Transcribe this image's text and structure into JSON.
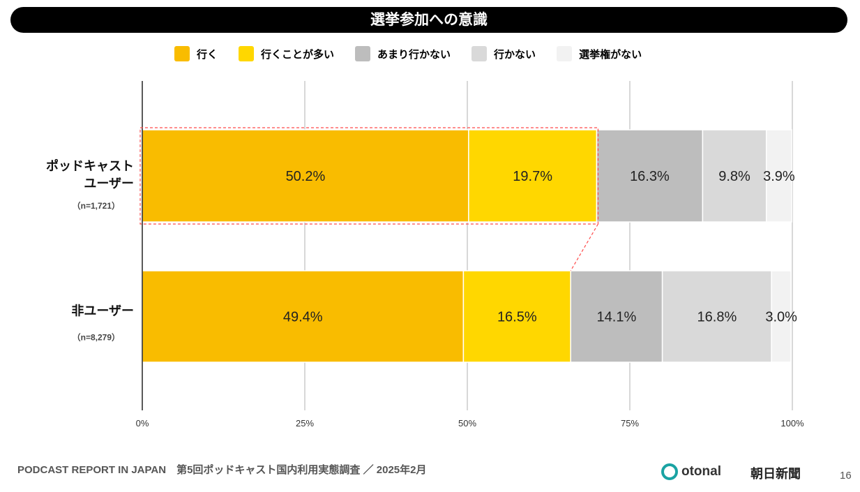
{
  "title": "選挙参加への意識",
  "chart_data": {
    "type": "bar",
    "stacked": true,
    "orientation": "horizontal",
    "title": "選挙参加への意識",
    "legend": [
      "行く",
      "行くことが多い",
      "あまり行かない",
      "行かない",
      "選挙権がない"
    ],
    "colors": [
      "#F9BC00",
      "#FFD700",
      "#BDBDBD",
      "#D9D9D9",
      "#F2F2F2"
    ],
    "categories": [
      {
        "label1": "ポッドキャスト",
        "label2": "ユーザー",
        "n": "（n=1,721）"
      },
      {
        "label1": "",
        "label2": "非ユーザー",
        "n": "（n=8,279）"
      }
    ],
    "series_values": [
      [
        50.2,
        19.7,
        16.3,
        9.8,
        3.9
      ],
      [
        49.4,
        16.5,
        14.1,
        16.8,
        3.0
      ]
    ],
    "labels": [
      [
        "50.2%",
        "19.7%",
        "16.3%",
        "9.8%",
        "3.9%"
      ],
      [
        "49.4%",
        "16.5%",
        "14.1%",
        "16.8%",
        "3.0%"
      ]
    ],
    "xticks": [
      "0%",
      "25%",
      "50%",
      "75%",
      "100%"
    ],
    "xlim": [
      0,
      100
    ],
    "highlight": "ポッドキャストユーザー: 行く + 行くことが多い",
    "highlight_color": "#FF4B4B"
  },
  "footer": {
    "text": "PODCAST REPORT IN JAPAN　第5回ポッドキャスト国内利用実態調査 ／ 2025年2月",
    "logo1": "otonal",
    "logo2": "朝日新聞",
    "page": "16"
  }
}
